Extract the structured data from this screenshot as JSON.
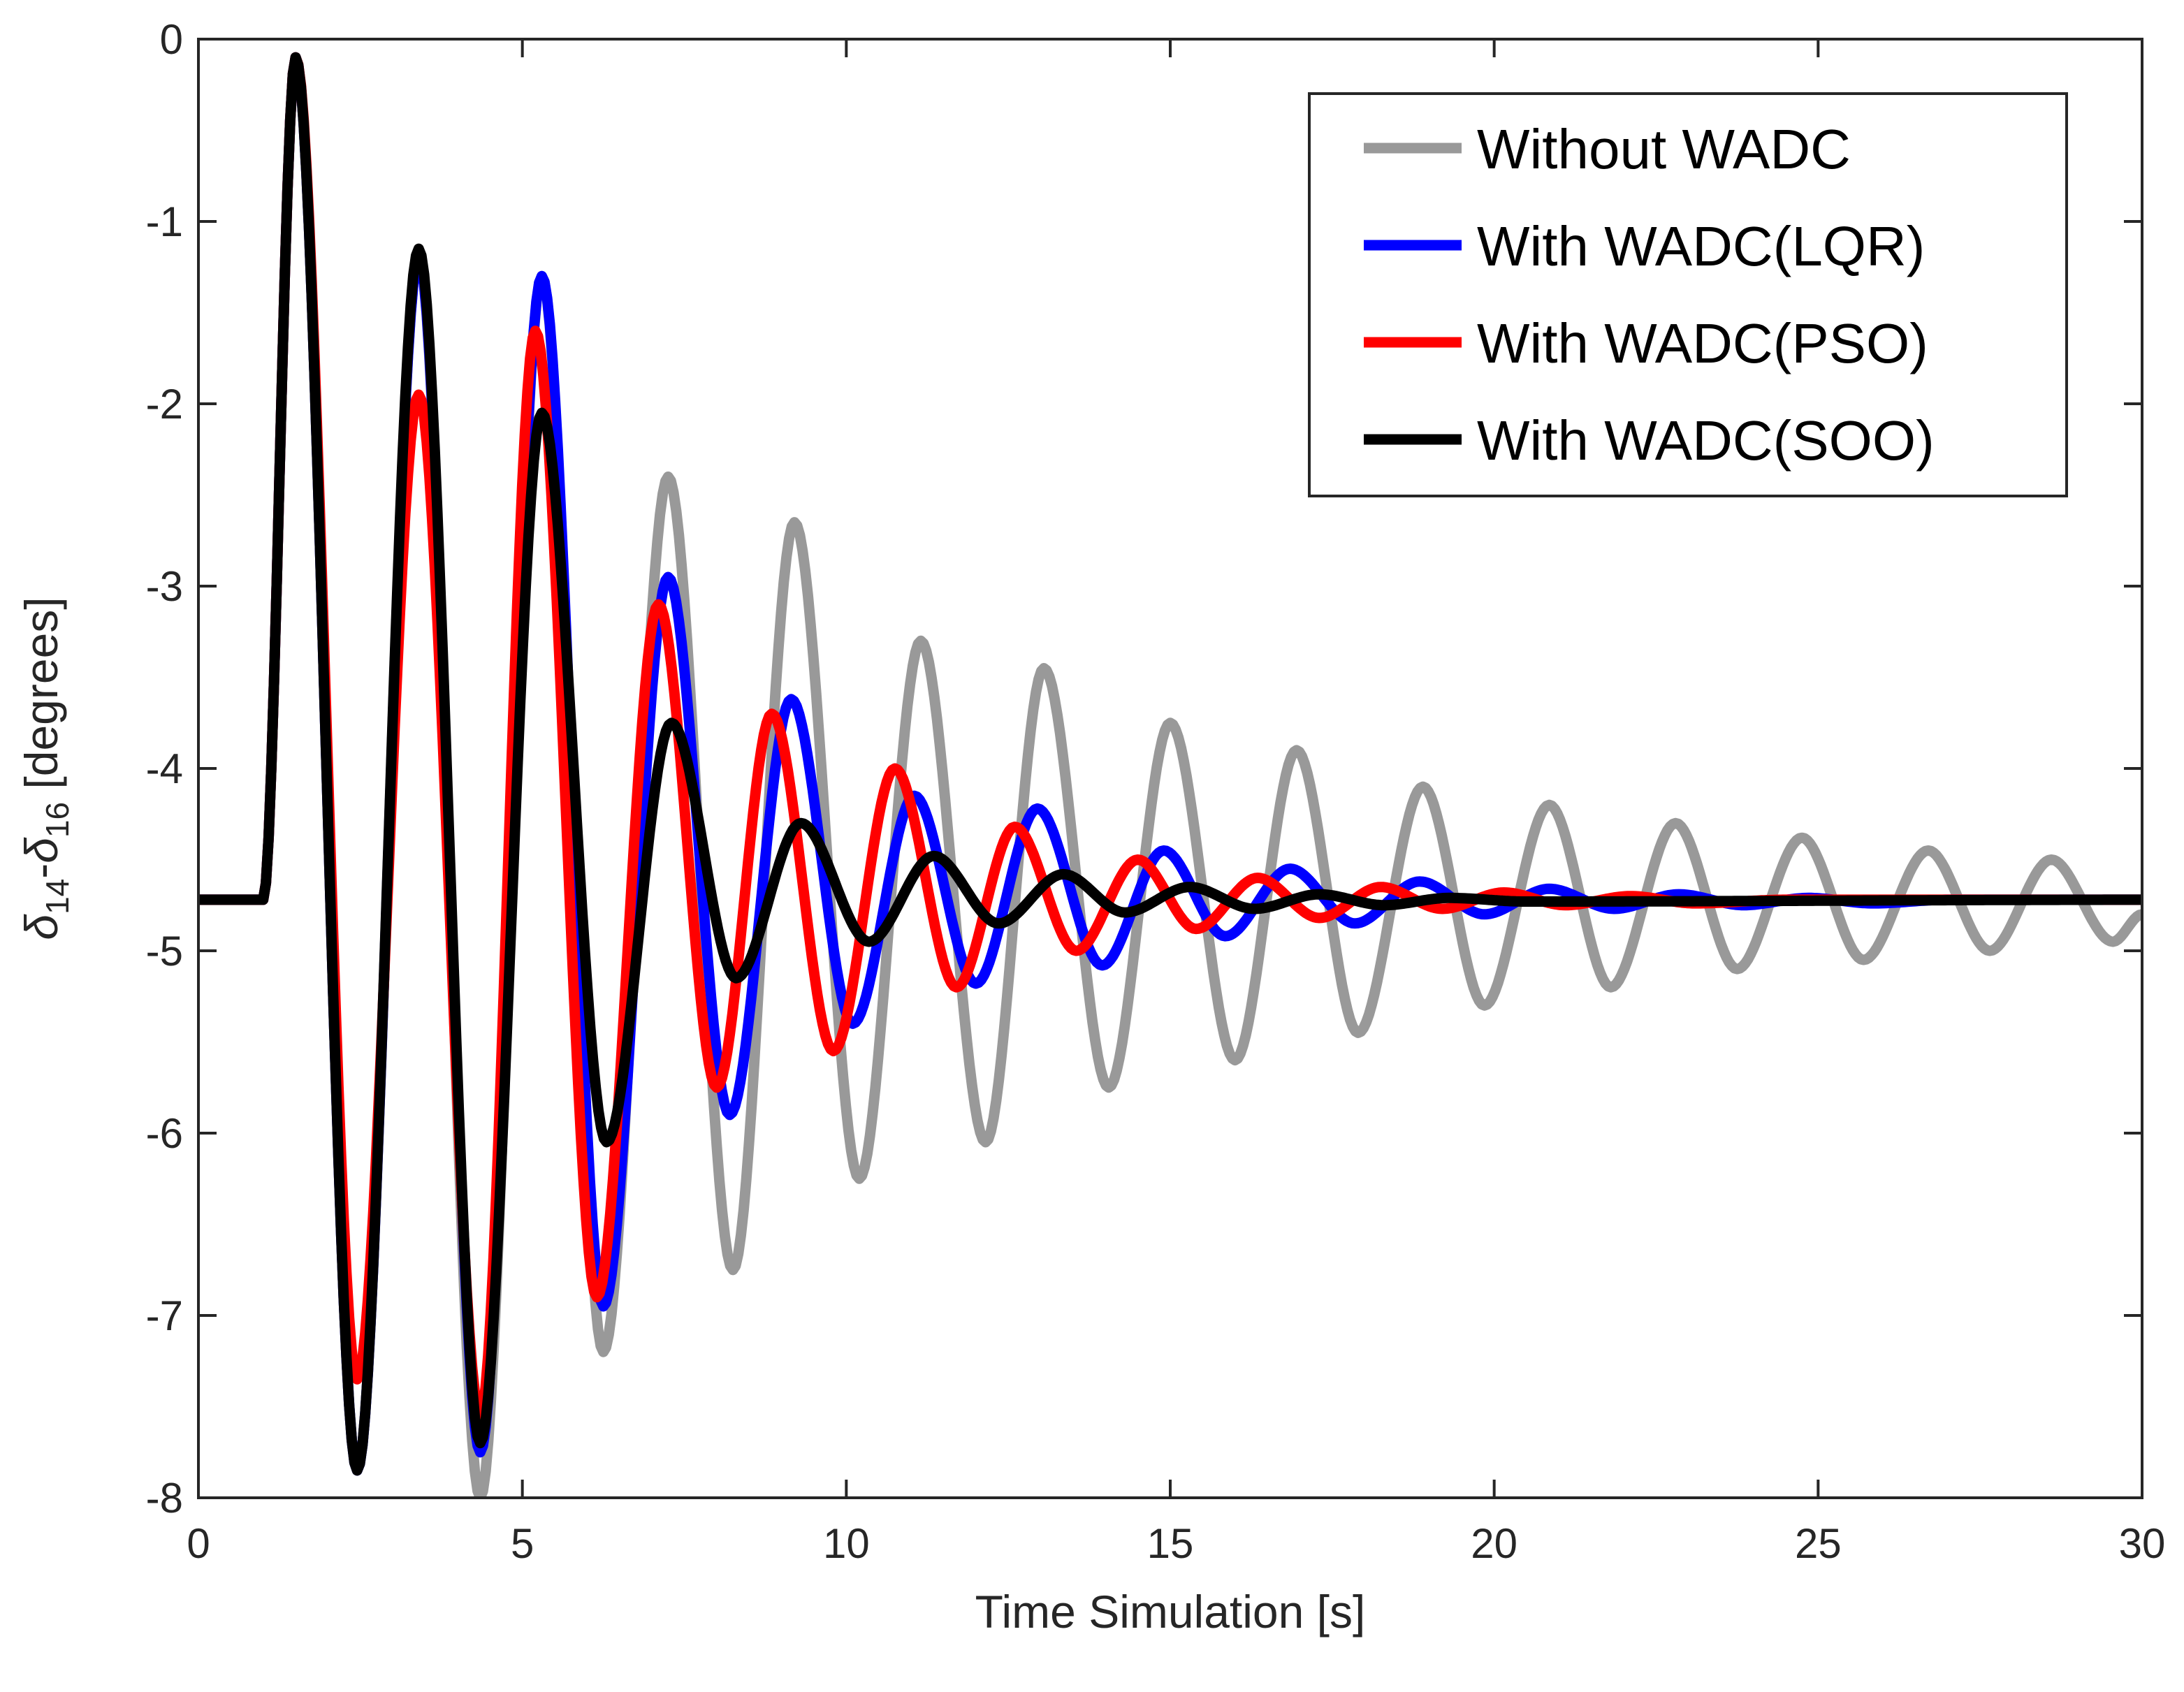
{
  "chart_data": {
    "type": "line",
    "xlabel": "Time Simulation [s]",
    "ylabel": {
      "delta": "δ",
      "sub1": "14",
      "dash": "-",
      "sub2": "16",
      "unit": " [degrees]"
    },
    "xlim": [
      0,
      30
    ],
    "ylim": [
      -8,
      0
    ],
    "xticks": [
      0,
      5,
      10,
      15,
      20,
      25,
      30
    ],
    "yticks": [
      0,
      -1,
      -2,
      -3,
      -4,
      -5,
      -6,
      -7,
      -8
    ],
    "xtick_labels": [
      "0",
      "5",
      "10",
      "15",
      "20",
      "25",
      "30"
    ],
    "ytick_labels": [
      "0",
      "-1",
      "-2",
      "-3",
      "-4",
      "-5",
      "-6",
      "-7",
      "-8"
    ],
    "grid": false,
    "legend_position": "top-right",
    "baseline": -4.72,
    "disturbance_time": 1.0,
    "series": [
      {
        "name": "Without WADC",
        "color": "#999999",
        "points": [
          [
            0,
            -4.72
          ],
          [
            1.0,
            -4.72
          ],
          [
            1.5,
            -0.1
          ],
          [
            2.45,
            -7.85
          ],
          [
            3.4,
            -1.2
          ],
          [
            4.35,
            -8.0
          ],
          [
            5.3,
            -1.3
          ],
          [
            6.25,
            -7.2
          ],
          [
            7.25,
            -2.4
          ],
          [
            8.25,
            -6.75
          ],
          [
            9.2,
            -2.65
          ],
          [
            10.2,
            -6.25
          ],
          [
            11.15,
            -3.3
          ],
          [
            12.15,
            -6.05
          ],
          [
            13.05,
            -3.45
          ],
          [
            14.05,
            -5.75
          ],
          [
            15.0,
            -3.75
          ],
          [
            16.0,
            -5.6
          ],
          [
            16.95,
            -3.9
          ],
          [
            17.9,
            -5.45
          ],
          [
            18.9,
            -4.1
          ],
          [
            19.85,
            -5.3
          ],
          [
            20.85,
            -4.2
          ],
          [
            21.8,
            -5.2
          ],
          [
            22.8,
            -4.3
          ],
          [
            23.75,
            -5.1
          ],
          [
            24.75,
            -4.38
          ],
          [
            25.7,
            -5.05
          ],
          [
            26.7,
            -4.45
          ],
          [
            27.65,
            -5.0
          ],
          [
            28.6,
            -4.5
          ],
          [
            29.55,
            -4.95
          ],
          [
            30.0,
            -4.8
          ]
        ]
      },
      {
        "name": "With WADC(LQR)",
        "color": "#0000ff",
        "points": [
          [
            0,
            -4.72
          ],
          [
            1.0,
            -4.72
          ],
          [
            1.5,
            -0.1
          ],
          [
            2.45,
            -7.85
          ],
          [
            3.4,
            -1.2
          ],
          [
            4.35,
            -7.75
          ],
          [
            5.3,
            -1.3
          ],
          [
            6.25,
            -6.95
          ],
          [
            7.25,
            -2.95
          ],
          [
            8.2,
            -5.9
          ],
          [
            9.15,
            -3.62
          ],
          [
            10.1,
            -5.4
          ],
          [
            11.05,
            -4.15
          ],
          [
            12.0,
            -5.18
          ],
          [
            12.95,
            -4.22
          ],
          [
            13.95,
            -5.08
          ],
          [
            14.9,
            -4.45
          ],
          [
            15.85,
            -4.92
          ],
          [
            16.85,
            -4.55
          ],
          [
            17.85,
            -4.85
          ],
          [
            18.85,
            -4.62
          ],
          [
            19.85,
            -4.8
          ],
          [
            20.85,
            -4.66
          ],
          [
            21.85,
            -4.77
          ],
          [
            22.85,
            -4.69
          ],
          [
            23.85,
            -4.75
          ],
          [
            24.85,
            -4.71
          ],
          [
            25.85,
            -4.74
          ],
          [
            27.0,
            -4.72
          ],
          [
            30.0,
            -4.72
          ]
        ]
      },
      {
        "name": "With WADC(PSO)",
        "color": "#ff0000",
        "points": [
          [
            0,
            -4.72
          ],
          [
            1.0,
            -4.72
          ],
          [
            1.5,
            -0.1
          ],
          [
            2.45,
            -7.35
          ],
          [
            3.4,
            -1.95
          ],
          [
            4.35,
            -7.55
          ],
          [
            5.2,
            -1.6
          ],
          [
            6.15,
            -6.9
          ],
          [
            7.1,
            -3.1
          ],
          [
            8.0,
            -5.75
          ],
          [
            8.85,
            -3.7
          ],
          [
            9.8,
            -5.55
          ],
          [
            10.75,
            -4.0
          ],
          [
            11.7,
            -5.2
          ],
          [
            12.6,
            -4.32
          ],
          [
            13.55,
            -5.0
          ],
          [
            14.5,
            -4.5
          ],
          [
            15.4,
            -4.88
          ],
          [
            16.35,
            -4.6
          ],
          [
            17.3,
            -4.82
          ],
          [
            18.25,
            -4.65
          ],
          [
            19.2,
            -4.77
          ],
          [
            20.15,
            -4.68
          ],
          [
            21.1,
            -4.75
          ],
          [
            22.1,
            -4.7
          ],
          [
            23.1,
            -4.74
          ],
          [
            24.5,
            -4.72
          ],
          [
            30.0,
            -4.72
          ]
        ]
      },
      {
        "name": "With WADC(SOO)",
        "color": "#000000",
        "points": [
          [
            0,
            -4.72
          ],
          [
            1.0,
            -4.72
          ],
          [
            1.5,
            -0.1
          ],
          [
            2.45,
            -7.85
          ],
          [
            3.4,
            -1.15
          ],
          [
            4.35,
            -7.7
          ],
          [
            5.3,
            -2.05
          ],
          [
            6.3,
            -6.05
          ],
          [
            7.3,
            -3.75
          ],
          [
            8.3,
            -5.15
          ],
          [
            9.3,
            -4.3
          ],
          [
            10.35,
            -4.95
          ],
          [
            11.35,
            -4.48
          ],
          [
            12.35,
            -4.85
          ],
          [
            13.35,
            -4.58
          ],
          [
            14.3,
            -4.79
          ],
          [
            15.3,
            -4.65
          ],
          [
            16.3,
            -4.77
          ],
          [
            17.3,
            -4.69
          ],
          [
            18.3,
            -4.75
          ],
          [
            19.3,
            -4.71
          ],
          [
            20.5,
            -4.73
          ],
          [
            30.0,
            -4.72
          ]
        ]
      }
    ]
  }
}
